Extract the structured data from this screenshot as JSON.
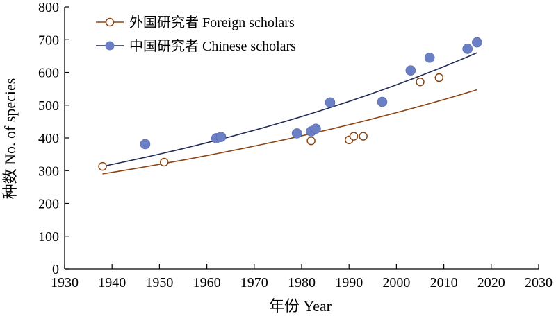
{
  "chart_data": {
    "type": "scatter",
    "xlabel": "年份 Year",
    "ylabel": "种数 No. of species",
    "xlim": [
      1930,
      2030
    ],
    "ylim": [
      0,
      800
    ],
    "xticks": [
      1930,
      1940,
      1950,
      1960,
      1970,
      1980,
      1990,
      2000,
      2010,
      2020,
      2030
    ],
    "yticks": [
      0,
      100,
      200,
      300,
      400,
      500,
      600,
      700,
      800
    ],
    "grid": false,
    "legend": "top-left",
    "series": [
      {
        "name": "外国研究者 Foreign scholars",
        "marker": "open-circle",
        "color": "#8B4513",
        "points": [
          {
            "x": 1938,
            "y": 313
          },
          {
            "x": 1951,
            "y": 326
          },
          {
            "x": 1982,
            "y": 391
          },
          {
            "x": 1990,
            "y": 394
          },
          {
            "x": 1991,
            "y": 405
          },
          {
            "x": 1993,
            "y": 405
          },
          {
            "x": 2005,
            "y": 571
          },
          {
            "x": 2009,
            "y": 584
          }
        ],
        "trend": {
          "x_start": 1938,
          "y_start": 290,
          "x_end": 2017,
          "y_end": 547
        }
      },
      {
        "name": "中国研究者 Chinese scholars",
        "marker": "filled-circle",
        "color": "#6B7FC4",
        "trend_color": "#1F2A55",
        "points": [
          {
            "x": 1947,
            "y": 381
          },
          {
            "x": 1962,
            "y": 399
          },
          {
            "x": 1963,
            "y": 403
          },
          {
            "x": 1979,
            "y": 414
          },
          {
            "x": 1982,
            "y": 420
          },
          {
            "x": 1983,
            "y": 428
          },
          {
            "x": 1986,
            "y": 508
          },
          {
            "x": 1997,
            "y": 510
          },
          {
            "x": 2003,
            "y": 606
          },
          {
            "x": 2007,
            "y": 645
          },
          {
            "x": 2015,
            "y": 672
          },
          {
            "x": 2017,
            "y": 692
          }
        ],
        "trend": {
          "x_start": 1938,
          "y_start": 313,
          "x_end": 2017,
          "y_end": 660
        }
      }
    ]
  }
}
